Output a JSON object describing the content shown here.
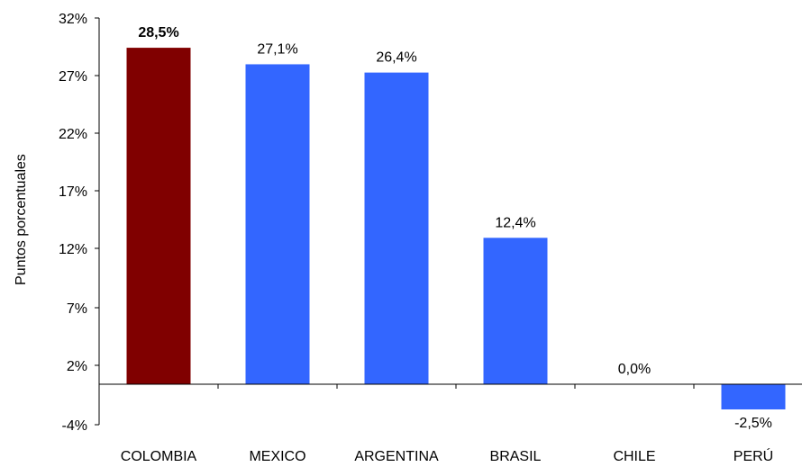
{
  "chart_data": {
    "type": "bar",
    "title": "",
    "xlabel": "",
    "ylabel": "Puntos porcentuales",
    "categories": [
      "COLOMBIA",
      "MEXICO",
      "ARGENTINA",
      "BRASIL",
      "CHILE",
      "PERÚ"
    ],
    "values": [
      28.5,
      27.1,
      26.4,
      12.4,
      0.0,
      -2.5
    ],
    "data_labels": [
      "28,5%",
      "27,1%",
      "26,4%",
      "12,4%",
      "0,0%",
      "-2,5%"
    ],
    "highlight_index": 0,
    "y_ticks": [
      -4,
      2,
      7,
      12,
      17,
      22,
      27,
      32
    ],
    "y_tick_labels": [
      "-4%",
      "2%",
      "7%",
      "12%",
      "17%",
      "22%",
      "27%",
      "32%"
    ],
    "ylim": [
      -4,
      32
    ],
    "grid": false,
    "legend": "none",
    "colors": {
      "highlight_bar": "#800000",
      "highlight_label": "#800000",
      "bar": "#3366FF",
      "axis": "#000000"
    }
  }
}
